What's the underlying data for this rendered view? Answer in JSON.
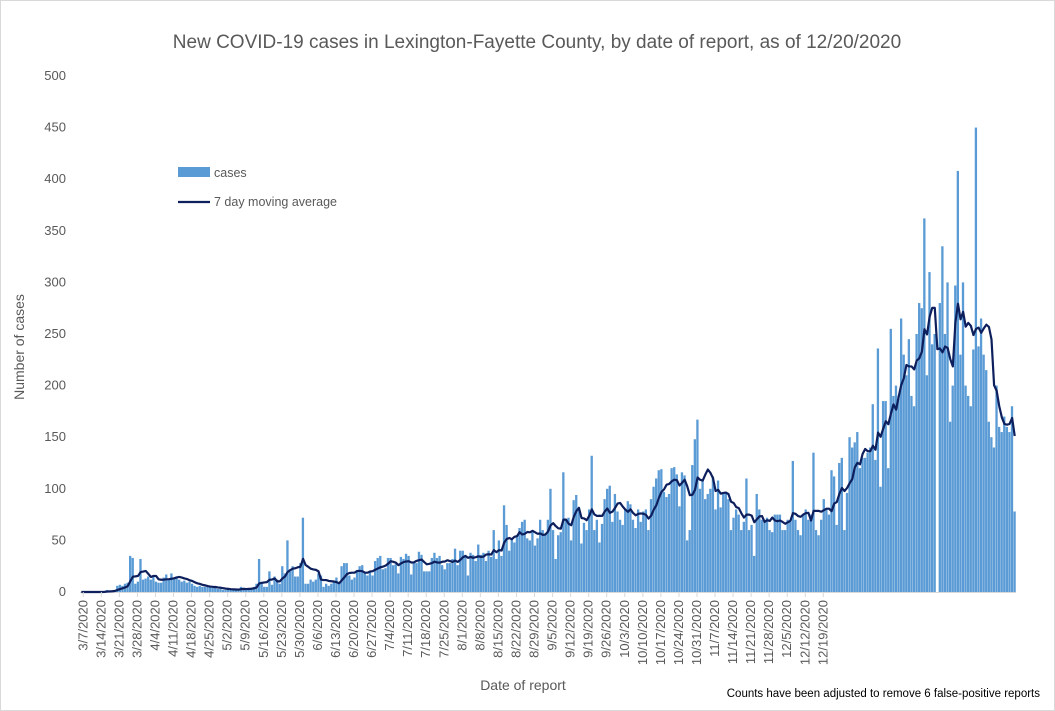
{
  "chart_data": {
    "type": "bar",
    "title": "New COVID-19 cases in Lexington-Fayette County, by date of report, as of 12/20/2020",
    "xlabel": "Date of report",
    "ylabel": "Number of cases",
    "ylim": [
      0,
      500
    ],
    "yticks": [
      0,
      50,
      100,
      150,
      200,
      250,
      300,
      350,
      400,
      450,
      500
    ],
    "xticks": [
      "3/7/2020",
      "3/14/2020",
      "3/21/2020",
      "3/28/2020",
      "4/4/2020",
      "4/11/2020",
      "4/18/2020",
      "4/25/2020",
      "5/2/2020",
      "5/9/2020",
      "5/16/2020",
      "5/23/2020",
      "5/30/2020",
      "6/6/2020",
      "6/13/2020",
      "6/20/2020",
      "6/27/2020",
      "7/4/2020",
      "7/11/2020",
      "7/18/2020",
      "7/25/2020",
      "8/1/2020",
      "8/8/2020",
      "8/15/2020",
      "8/22/2020",
      "8/29/2020",
      "9/5/2020",
      "9/12/2020",
      "9/19/2020",
      "9/26/2020",
      "10/3/2020",
      "10/10/2020",
      "10/17/2020",
      "10/24/2020",
      "10/31/2020",
      "11/7/2020",
      "11/14/2020",
      "11/21/2020",
      "11/28/2020",
      "12/5/2020",
      "12/12/2020",
      "12/19/2020"
    ],
    "grid": false,
    "legend_position": "upper-left inside plot",
    "colors": {
      "bars": "#5b9bd5",
      "line": "#0d1f5c"
    },
    "x_start": "3/7/2020",
    "series": [
      {
        "name": "cases",
        "type": "bar",
        "values": [
          0,
          0,
          0,
          0,
          0,
          0,
          0,
          0,
          0,
          1,
          2,
          1,
          1,
          2,
          6,
          7,
          6,
          8,
          9,
          35,
          33,
          8,
          10,
          32,
          12,
          13,
          15,
          12,
          15,
          10,
          9,
          9,
          14,
          17,
          13,
          18,
          13,
          15,
          12,
          10,
          11,
          9,
          10,
          8,
          6,
          5,
          6,
          5,
          5,
          5,
          5,
          4,
          4,
          3,
          3,
          2,
          2,
          3,
          2,
          3,
          2,
          2,
          5,
          4,
          2,
          3,
          4,
          5,
          8,
          32,
          8,
          5,
          5,
          20,
          7,
          15,
          12,
          8,
          25,
          18,
          50,
          20,
          25,
          15,
          15,
          28,
          72,
          8,
          8,
          12,
          10,
          12,
          18,
          16,
          5,
          8,
          6,
          8,
          10,
          14,
          8,
          25,
          28,
          28,
          16,
          12,
          14,
          20,
          25,
          26,
          18,
          16,
          20,
          16,
          30,
          33,
          35,
          22,
          23,
          33,
          33,
          26,
          27,
          18,
          34,
          32,
          37,
          35,
          17,
          28,
          28,
          39,
          36,
          20,
          20,
          20,
          33,
          38,
          33,
          35,
          26,
          22,
          28,
          28,
          32,
          42,
          26,
          40,
          40,
          36,
          16,
          38,
          36,
          30,
          46,
          36,
          38,
          30,
          40,
          34,
          60,
          32,
          50,
          35,
          84,
          65,
          40,
          52,
          48,
          55,
          62,
          68,
          70,
          52,
          50,
          58,
          45,
          52,
          70,
          60,
          55,
          70,
          100,
          60,
          32,
          55,
          58,
          116,
          70,
          72,
          50,
          89,
          94,
          80,
          47,
          67,
          60,
          80,
          132,
          60,
          70,
          48,
          66,
          90,
          100,
          103,
          68,
          95,
          78,
          70,
          65,
          80,
          88,
          85,
          70,
          62,
          80,
          68,
          78,
          80,
          60,
          90,
          102,
          110,
          118,
          119,
          97,
          92,
          95,
          120,
          121,
          114,
          83,
          116,
          113,
          50,
          60,
          123,
          148,
          167,
          100,
          108,
          90,
          95,
          100,
          112,
          80,
          108,
          82,
          95,
          97,
          90,
          60,
          72,
          80,
          75,
          60,
          68,
          110,
          60,
          65,
          35,
          95,
          80,
          70,
          70,
          72,
          60,
          58,
          75,
          75,
          75,
          60,
          60,
          70,
          68,
          127,
          70,
          60,
          55,
          75,
          80,
          70,
          75,
          135,
          60,
          55,
          70,
          90,
          80,
          75,
          118,
          112,
          65,
          125,
          130,
          60,
          96,
          150,
          140,
          145,
          155,
          120,
          130,
          130,
          135,
          140,
          182,
          128,
          236,
          102,
          185,
          185,
          120,
          255,
          190,
          200,
          190,
          265,
          230,
          210,
          245,
          190,
          180,
          250,
          280,
          275,
          362,
          210,
          310,
          240,
          250,
          0,
          280,
          335,
          250,
          300,
          165,
          200,
          297,
          408,
          230,
          300,
          200,
          190,
          180,
          235,
          450,
          238,
          265,
          230,
          215,
          165,
          150,
          140,
          200,
          160,
          155,
          170,
          160,
          155,
          180,
          78
        ],
        "note": "approximate daily counts read from the chart, one value per day starting 3/7/2020"
      },
      {
        "name": "7 day moving average",
        "type": "line",
        "values": []
      }
    ]
  },
  "note": "Counts have been adjusted to remove 6 false-positive reports"
}
